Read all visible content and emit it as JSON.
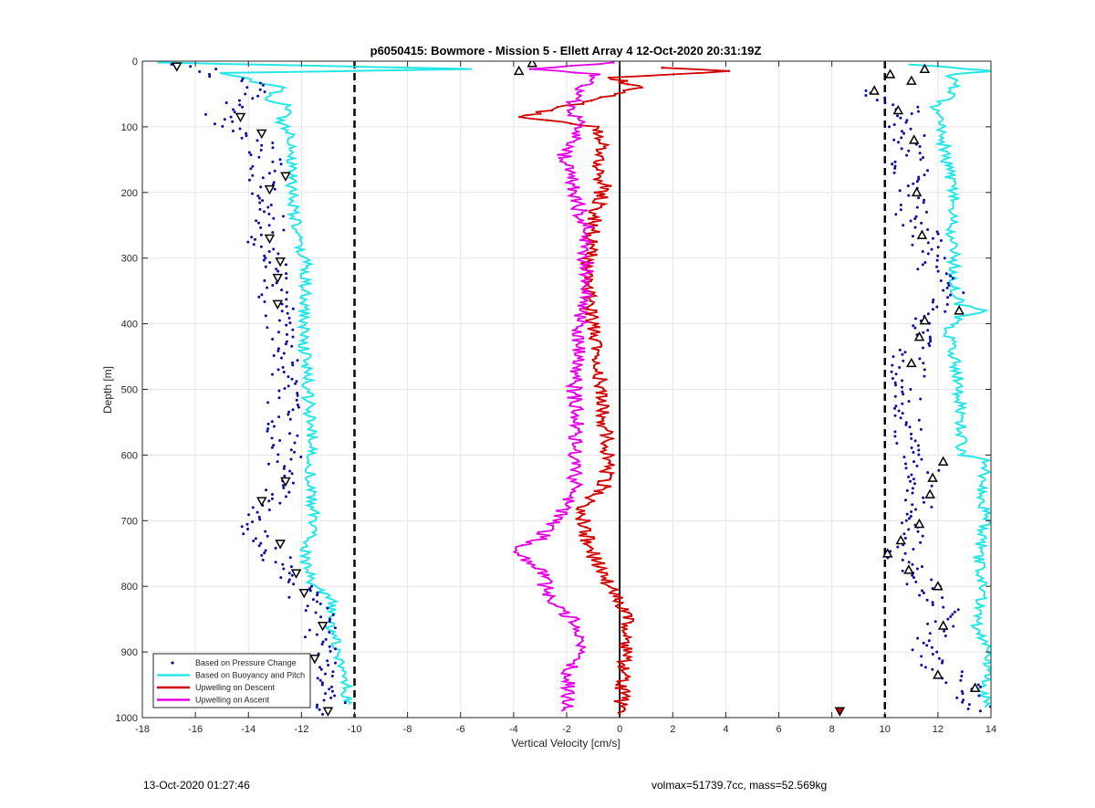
{
  "chart_data": {
    "type": "scatter",
    "title": "p6050415: Bowmore - Mission 5 - Ellett Array 4 12-Oct-2020 20:31:19Z",
    "xlabel": "Vertical Velocity [cm/s]",
    "ylabel": "Depth [m]",
    "xlim": [
      -18,
      14
    ],
    "ylim": [
      0,
      1000
    ],
    "y_reversed": true,
    "x_ticks": [
      -18,
      -16,
      -14,
      -12,
      -10,
      -8,
      -6,
      -4,
      -2,
      0,
      2,
      4,
      6,
      8,
      10,
      12,
      14
    ],
    "y_ticks": [
      0,
      100,
      200,
      300,
      400,
      500,
      600,
      700,
      800,
      900,
      1000
    ],
    "grid": true,
    "legend_position": "bottom-left",
    "reference_lines": [
      {
        "x": -10,
        "style": "dashed",
        "color": "#000000"
      },
      {
        "x": 10,
        "style": "dashed",
        "color": "#000000"
      },
      {
        "x": 0,
        "style": "solid",
        "color": "#000000"
      }
    ],
    "series": [
      {
        "name": "Based on Pressure Change",
        "kind": "points",
        "color": "#0a0aa8",
        "descent": [
          [
            -17.2,
            5
          ],
          [
            -16.0,
            8
          ],
          [
            -15.5,
            20
          ],
          [
            -13.5,
            40
          ],
          [
            -14.8,
            70
          ],
          [
            -15.2,
            85
          ],
          [
            -14.0,
            110
          ],
          [
            -13.2,
            150
          ],
          [
            -13.4,
            195
          ],
          [
            -13.2,
            250
          ],
          [
            -13.5,
            290
          ],
          [
            -12.8,
            320
          ],
          [
            -13.0,
            370
          ],
          [
            -12.6,
            420
          ],
          [
            -12.8,
            470
          ],
          [
            -12.7,
            520
          ],
          [
            -12.8,
            560
          ],
          [
            -12.6,
            610
          ],
          [
            -12.9,
            650
          ],
          [
            -13.6,
            680
          ],
          [
            -13.8,
            720
          ],
          [
            -12.9,
            760
          ],
          [
            -12.5,
            790
          ],
          [
            -12.0,
            810
          ],
          [
            -11.4,
            840
          ],
          [
            -11.3,
            870
          ],
          [
            -11.4,
            910
          ],
          [
            -11.0,
            940
          ],
          [
            -10.8,
            970
          ],
          [
            -11.2,
            995
          ]
        ],
        "ascent": [
          [
            9.5,
            45
          ],
          [
            10.6,
            70
          ],
          [
            10.8,
            100
          ],
          [
            11.0,
            130
          ],
          [
            10.9,
            160
          ],
          [
            11.2,
            190
          ],
          [
            11.0,
            230
          ],
          [
            11.5,
            260
          ],
          [
            11.6,
            290
          ],
          [
            11.8,
            320
          ],
          [
            12.5,
            360
          ],
          [
            11.2,
            410
          ],
          [
            11.0,
            440
          ],
          [
            10.9,
            470
          ],
          [
            10.8,
            500
          ],
          [
            10.7,
            540
          ],
          [
            11.0,
            575
          ],
          [
            11.3,
            610
          ],
          [
            11.5,
            640
          ],
          [
            11.2,
            690
          ],
          [
            10.9,
            720
          ],
          [
            10.6,
            750
          ],
          [
            11.0,
            780
          ],
          [
            11.8,
            810
          ],
          [
            12.4,
            850
          ],
          [
            11.6,
            890
          ],
          [
            11.9,
            920
          ],
          [
            13.0,
            950
          ],
          [
            13.2,
            970
          ],
          [
            13.6,
            990
          ]
        ],
        "descent_markers": [
          [
            -16.7,
            8
          ],
          [
            -14.3,
            85
          ],
          [
            -13.5,
            110
          ],
          [
            -12.6,
            175
          ],
          [
            -13.2,
            195
          ],
          [
            -13.2,
            270
          ],
          [
            -12.8,
            305
          ],
          [
            -12.9,
            330
          ],
          [
            -12.9,
            370
          ],
          [
            -12.6,
            640
          ],
          [
            -13.5,
            670
          ],
          [
            -12.8,
            735
          ],
          [
            -12.2,
            780
          ],
          [
            -11.9,
            810
          ],
          [
            -11.2,
            860
          ],
          [
            -11.5,
            910
          ],
          [
            -11.0,
            990
          ]
        ],
        "ascent_markers": [
          [
            -3.3,
            3
          ],
          [
            -3.8,
            15
          ],
          [
            10.2,
            20
          ],
          [
            11.5,
            12
          ],
          [
            11.0,
            30
          ],
          [
            9.6,
            45
          ],
          [
            10.5,
            75
          ],
          [
            11.1,
            120
          ],
          [
            11.2,
            200
          ],
          [
            11.4,
            265
          ],
          [
            12.8,
            380
          ],
          [
            11.5,
            395
          ],
          [
            11.3,
            420
          ],
          [
            11.0,
            460
          ],
          [
            12.2,
            610
          ],
          [
            11.8,
            635
          ],
          [
            11.7,
            660
          ],
          [
            11.3,
            705
          ],
          [
            10.6,
            730
          ],
          [
            10.1,
            750
          ],
          [
            10.9,
            775
          ],
          [
            12.0,
            800
          ],
          [
            12.2,
            860
          ],
          [
            12.0,
            935
          ],
          [
            13.4,
            955
          ]
        ]
      },
      {
        "name": "Based on Buoyancy and Pitch",
        "kind": "line",
        "color": "#26e6e6",
        "descent": [
          [
            -17.5,
            2
          ],
          [
            -5.5,
            12
          ],
          [
            -15.2,
            18
          ],
          [
            -12.6,
            40
          ],
          [
            -13.5,
            55
          ],
          [
            -12.4,
            70
          ],
          [
            -12.8,
            90
          ],
          [
            -12.3,
            115
          ],
          [
            -12.4,
            160
          ],
          [
            -12.3,
            210
          ],
          [
            -12.2,
            260
          ],
          [
            -12.1,
            290
          ],
          [
            -11.8,
            300
          ],
          [
            -11.9,
            360
          ],
          [
            -11.9,
            420
          ],
          [
            -11.8,
            480
          ],
          [
            -11.7,
            540
          ],
          [
            -11.6,
            600
          ],
          [
            -11.7,
            650
          ],
          [
            -11.5,
            700
          ],
          [
            -11.9,
            760
          ],
          [
            -11.6,
            800
          ],
          [
            -10.9,
            820
          ],
          [
            -10.9,
            860
          ],
          [
            -10.6,
            900
          ],
          [
            -10.4,
            940
          ],
          [
            -10.2,
            980
          ]
        ],
        "ascent": [
          [
            11.0,
            5
          ],
          [
            14.0,
            15
          ],
          [
            12.5,
            20
          ],
          [
            12.6,
            50
          ],
          [
            11.8,
            70
          ],
          [
            12.1,
            90
          ],
          [
            12.3,
            150
          ],
          [
            12.6,
            200
          ],
          [
            12.5,
            260
          ],
          [
            12.6,
            300
          ],
          [
            12.6,
            340
          ],
          [
            12.8,
            370
          ],
          [
            14.0,
            380
          ],
          [
            12.8,
            390
          ],
          [
            12.4,
            410
          ],
          [
            12.7,
            460
          ],
          [
            12.8,
            510
          ],
          [
            12.9,
            560
          ],
          [
            12.9,
            600
          ],
          [
            13.8,
            605
          ],
          [
            13.7,
            650
          ],
          [
            13.8,
            700
          ],
          [
            13.5,
            750
          ],
          [
            13.7,
            800
          ],
          [
            13.5,
            860
          ],
          [
            14.0,
            900
          ],
          [
            13.7,
            960
          ],
          [
            13.8,
            985
          ]
        ]
      },
      {
        "name": "Upwelling on Descent",
        "kind": "line",
        "color": "#d10000",
        "points": [
          [
            1.5,
            10
          ],
          [
            4.2,
            15
          ],
          [
            -0.3,
            25
          ],
          [
            0.7,
            40
          ],
          [
            -1.0,
            60
          ],
          [
            -3.8,
            85
          ],
          [
            -0.8,
            100
          ],
          [
            -0.7,
            130
          ],
          [
            -0.8,
            160
          ],
          [
            -0.6,
            190
          ],
          [
            -0.8,
            220
          ],
          [
            -1.0,
            250
          ],
          [
            -1.1,
            290
          ],
          [
            -1.3,
            330
          ],
          [
            -1.1,
            370
          ],
          [
            -1.0,
            400
          ],
          [
            -0.8,
            450
          ],
          [
            -0.7,
            500
          ],
          [
            -0.6,
            540
          ],
          [
            -0.5,
            580
          ],
          [
            -0.4,
            620
          ],
          [
            -0.6,
            650
          ],
          [
            -1.5,
            680
          ],
          [
            -1.3,
            720
          ],
          [
            -0.9,
            760
          ],
          [
            -0.5,
            790
          ],
          [
            0.1,
            830
          ],
          [
            0.3,
            860
          ],
          [
            0.2,
            900
          ],
          [
            0.1,
            930
          ],
          [
            0.1,
            970
          ],
          [
            0.0,
            995
          ]
        ]
      },
      {
        "name": "Upwelling on Ascent",
        "kind": "line",
        "color": "#e600e6",
        "points": [
          [
            -0.2,
            2
          ],
          [
            -3.2,
            12
          ],
          [
            -0.8,
            20
          ],
          [
            -1.5,
            40
          ],
          [
            -1.8,
            70
          ],
          [
            -1.5,
            100
          ],
          [
            -2.1,
            140
          ],
          [
            -1.8,
            180
          ],
          [
            -1.6,
            220
          ],
          [
            -1.2,
            260
          ],
          [
            -1.3,
            300
          ],
          [
            -1.2,
            350
          ],
          [
            -1.5,
            400
          ],
          [
            -1.6,
            450
          ],
          [
            -1.7,
            500
          ],
          [
            -1.6,
            550
          ],
          [
            -1.7,
            600
          ],
          [
            -1.7,
            650
          ],
          [
            -2.4,
            700
          ],
          [
            -3.1,
            730
          ],
          [
            -4.0,
            745
          ],
          [
            -2.9,
            780
          ],
          [
            -2.7,
            820
          ],
          [
            -1.5,
            860
          ],
          [
            -1.6,
            900
          ],
          [
            -2.0,
            940
          ],
          [
            -1.9,
            980
          ],
          [
            -2.2,
            990
          ]
        ]
      }
    ],
    "highlight_markers": [
      {
        "x": 8.3,
        "y": 990,
        "color": "#d10000"
      }
    ],
    "legend": [
      "Based on Pressure Change",
      "Based on Buoyancy and Pitch",
      "Upwelling on Descent",
      "Upwelling on Ascent"
    ]
  },
  "footer": {
    "left": "13-Oct-2020 01:27:46",
    "right": "volmax=51739.7cc, mass=52.569kg"
  }
}
